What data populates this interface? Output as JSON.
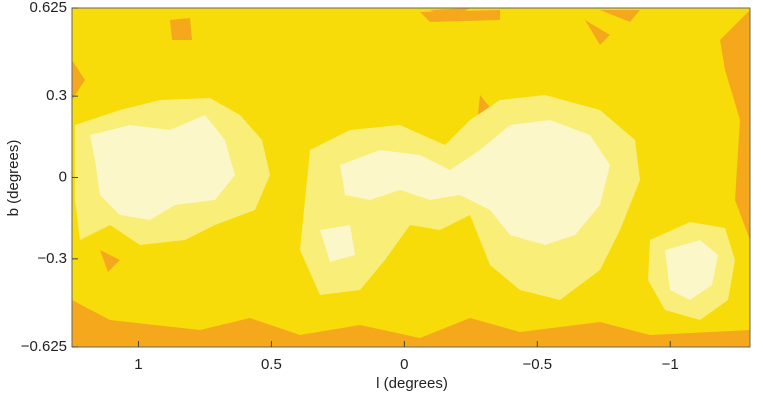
{
  "chart_data": {
    "type": "contour",
    "x_label": "l (degrees)",
    "y_label": "b (degrees)",
    "xlim": [
      1.25,
      -1.3
    ],
    "ylim": [
      -0.625,
      0.625
    ],
    "xticks": [
      1,
      0.5,
      0,
      {
        "value": -0.5,
        "label": "−0.5"
      },
      {
        "value": -1,
        "label": "−1"
      }
    ],
    "yticks": [
      {
        "value": -0.625,
        "label": "−0.625"
      },
      {
        "value": -0.3,
        "label": "−0.3"
      },
      0,
      0.3,
      0.625
    ],
    "level_colors": [
      "#f5a81c",
      "#f7dc0a",
      "#f8ee78",
      "#fbf7c8"
    ]
  }
}
